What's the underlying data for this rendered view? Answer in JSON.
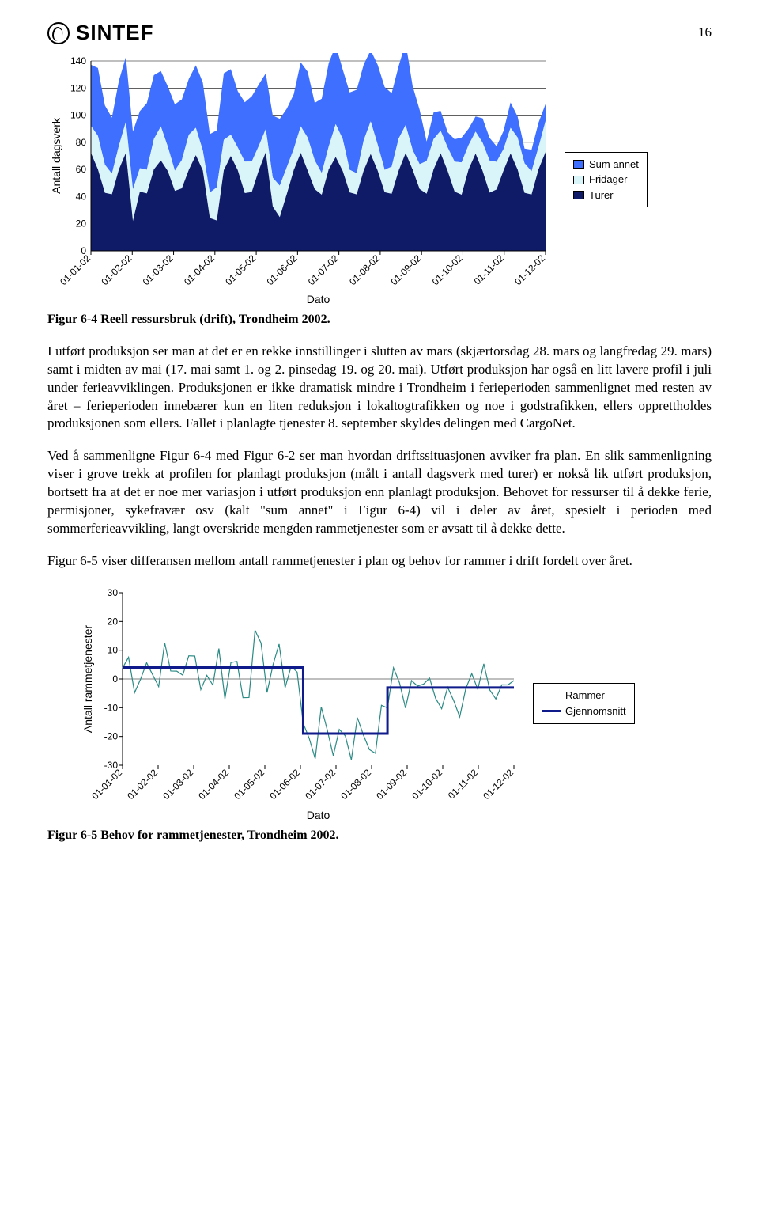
{
  "page_number": "16",
  "logo_text": "SINTEF",
  "chart1": {
    "type": "area-stacked",
    "ylabel": "Antall dagsverk",
    "xlabel": "Dato",
    "ylim": [
      0,
      140
    ],
    "ytick_step": 20,
    "x_categories": [
      "01-01-02",
      "01-02-02",
      "01-03-02",
      "01-04-02",
      "01-05-02",
      "01-06-02",
      "01-07-02",
      "01-08-02",
      "01-09-02",
      "01-10-02",
      "01-11-02",
      "01-12-02"
    ],
    "series": [
      {
        "name": "Sum annet",
        "color": "#3f6fff"
      },
      {
        "name": "Fridager",
        "color": "#d9f5f9"
      },
      {
        "name": "Turer",
        "color": "#0f1b66"
      }
    ],
    "background_color": "#ffffff",
    "grid_color": "#000000",
    "label_fontsize": 12,
    "axis_title_fontsize": 14,
    "turer_base": 55,
    "turer_amp": 18,
    "turer_drop_idx": 6,
    "fridager_base": 20,
    "fridager_amp": 6,
    "annet_base_hi": 45,
    "annet_base_lo": 15,
    "annet_drop_idx": 48,
    "legend": [
      "Sum annet",
      "Fridager",
      "Turer"
    ]
  },
  "caption1": "Figur 6-4 Reell ressursbruk (drift), Trondheim 2002.",
  "para1": "I utført produksjon ser man at det er en rekke innstillinger i slutten av mars (skjærtorsdag 28. mars og langfredag 29. mars) samt i midten av mai (17. mai samt 1. og 2. pinsedag 19. og 20. mai). Utført produksjon har også en litt lavere profil i juli under ferieavviklingen. Produksjonen er ikke dramatisk mindre i Trondheim i ferieperioden sammenlignet med resten av året – ferieperioden innebærer kun en liten reduksjon i lokaltogtrafikken og noe i godstrafikken, ellers opprettholdes produksjonen som ellers. Fallet i planlagte tjenester 8. september skyldes delingen med CargoNet.",
  "para2": "Ved å sammenligne Figur 6-4 med Figur 6-2 ser man hvordan driftssituasjonen avviker fra plan. En slik sammenligning viser i grove trekk at profilen for planlagt produksjon (målt i antall dagsverk med turer) er nokså lik utført produksjon, bortsett fra at det er noe mer variasjon i utført produksjon enn planlagt produksjon. Behovet for ressurser til å dekke ferie, permisjoner, sykefravær osv (kalt \"sum annet\" i Figur 6-4) vil i deler av året, spesielt i perioden med sommerferieavvikling, langt overskride mengden rammetjenester som er avsatt til å dekke dette.",
  "para3": "Figur 6-5 viser differansen mellom antall rammetjenester i plan og behov for rammer i drift fordelt over året.",
  "chart2": {
    "type": "line",
    "ylabel": "Antall rammetjenester",
    "xlabel": "Dato",
    "ylim": [
      -30,
      30
    ],
    "ytick_step": 10,
    "x_categories": [
      "01-01-02",
      "01-02-02",
      "01-03-02",
      "01-04-02",
      "01-05-02",
      "01-06-02",
      "01-07-02",
      "01-08-02",
      "01-09-02",
      "01-10-02",
      "01-11-02",
      "01-12-02"
    ],
    "series": [
      {
        "name": "Rammer",
        "color": "#2a8a84",
        "width": 1.2
      },
      {
        "name": "Gjennomsnitt",
        "color": "#0f1b8a",
        "width": 3
      }
    ],
    "avg_steps": [
      {
        "from": 0,
        "to": 30,
        "y": 4
      },
      {
        "from": 30,
        "to": 44,
        "y": -19
      },
      {
        "from": 44,
        "to": 66,
        "y": -3
      }
    ],
    "background_color": "#ffffff",
    "grid_color": "#000000",
    "label_fontsize": 12,
    "axis_title_fontsize": 14,
    "legend": [
      "Rammer",
      "Gjennomsnitt"
    ]
  },
  "caption2": "Figur 6-5 Behov for rammetjenester, Trondheim 2002."
}
